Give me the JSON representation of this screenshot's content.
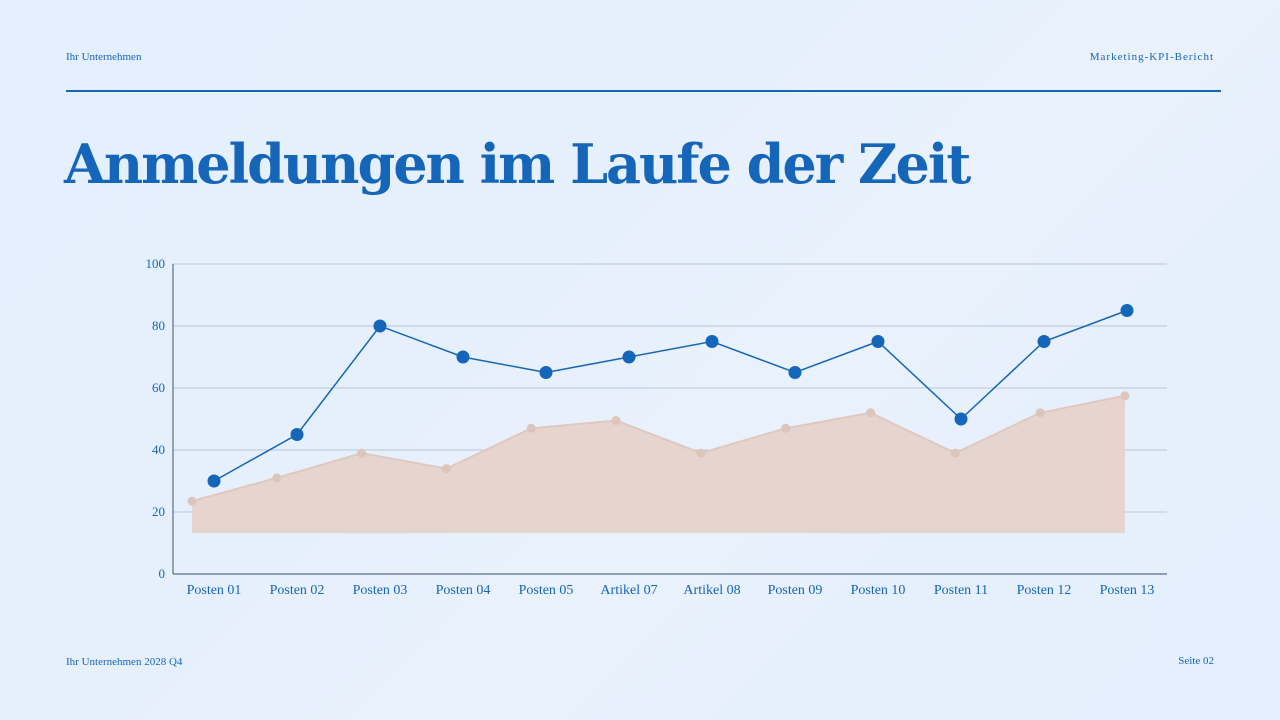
{
  "header": {
    "company": "Ihr Unternehmen",
    "report": "Marketing-KPI-Bericht"
  },
  "title": "Anmeldungen im Laufe der Zeit",
  "footer": {
    "left": "Ihr Unternehmen 2028 Q4",
    "right": "Seite 02"
  },
  "colors": {
    "accent": "#1565b8",
    "area": "#e6d3cc",
    "area_point": "#dcc5ba"
  },
  "chart_data": {
    "type": "line",
    "title": "",
    "xlabel": "",
    "ylabel": "",
    "ylim": [
      0,
      100
    ],
    "yticks": [
      0,
      20,
      40,
      60,
      80,
      100
    ],
    "grid": true,
    "categories": [
      "Posten 01",
      "Posten 02",
      "Posten 03",
      "Posten 04",
      "Posten 05",
      "Artikel 07",
      "Artikel 08",
      "Posten 09",
      "Posten 10",
      "Posten 11",
      "Posten 12",
      "Posten 13"
    ],
    "series": [
      {
        "type": "line",
        "color": "#1565b8",
        "values": [
          30,
          45,
          80,
          70,
          65,
          70,
          75,
          65,
          75,
          50,
          75,
          85
        ]
      },
      {
        "type": "area",
        "color": "#e6d3cc",
        "values": [
          23.5,
          31,
          39,
          34,
          47,
          49.5,
          39,
          47,
          52,
          39,
          52,
          57.5
        ]
      }
    ]
  }
}
